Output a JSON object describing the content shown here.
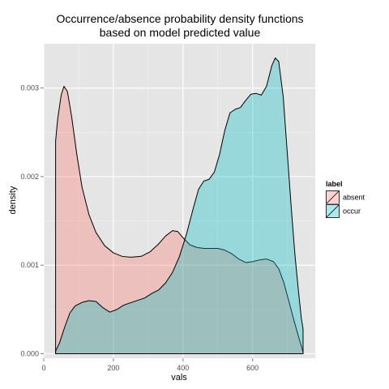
{
  "chart_data": {
    "type": "area",
    "title_lines": [
      "Occurrence/absence probability density functions",
      "based on model predicted value"
    ],
    "xlabel": "vals",
    "ylabel": "density",
    "xlim": [
      0,
      780
    ],
    "ylim": [
      -5e-05,
      0.0035
    ],
    "x_ticks": [
      0,
      200,
      400,
      600
    ],
    "y_ticks": [
      0.0,
      0.001,
      0.002,
      0.003
    ],
    "x_tick_labels": [
      "0",
      "200",
      "400",
      "600"
    ],
    "y_tick_labels": [
      "0.000",
      "0.001",
      "0.002",
      "0.003"
    ],
    "grid": true,
    "legend": {
      "title": "label",
      "position": "right",
      "items": [
        {
          "name": "absent",
          "color": "#F8766D"
        },
        {
          "name": "occur",
          "color": "#00BFC4"
        }
      ]
    },
    "series": [
      {
        "name": "absent",
        "color": "#F8766D",
        "points": [
          [
            34,
            0.0024
          ],
          [
            40,
            0.00265
          ],
          [
            50,
            0.00292
          ],
          [
            58,
            0.00302
          ],
          [
            68,
            0.00296
          ],
          [
            80,
            0.00268
          ],
          [
            95,
            0.00225
          ],
          [
            110,
            0.00188
          ],
          [
            130,
            0.00157
          ],
          [
            150,
            0.00137
          ],
          [
            175,
            0.00122
          ],
          [
            200,
            0.00114
          ],
          [
            225,
            0.0011
          ],
          [
            250,
            0.00109
          ],
          [
            280,
            0.0011
          ],
          [
            305,
            0.00115
          ],
          [
            330,
            0.00124
          ],
          [
            350,
            0.00133
          ],
          [
            370,
            0.00139
          ],
          [
            385,
            0.00138
          ],
          [
            400,
            0.00131
          ],
          [
            420,
            0.00123
          ],
          [
            440,
            0.0012
          ],
          [
            460,
            0.00119
          ],
          [
            480,
            0.00119
          ],
          [
            500,
            0.00119
          ],
          [
            520,
            0.00117
          ],
          [
            540,
            0.00113
          ],
          [
            560,
            0.00107
          ],
          [
            580,
            0.00103
          ],
          [
            600,
            0.00104
          ],
          [
            620,
            0.00106
          ],
          [
            640,
            0.00107
          ],
          [
            660,
            0.00104
          ],
          [
            675,
            0.00096
          ],
          [
            690,
            0.0008
          ],
          [
            705,
            0.00058
          ],
          [
            720,
            0.00036
          ],
          [
            733,
            0.00018
          ],
          [
            745,
            2e-05
          ]
        ]
      },
      {
        "name": "occur",
        "color": "#00BFC4",
        "points": [
          [
            34,
            3e-05
          ],
          [
            45,
            0.00012
          ],
          [
            60,
            0.0003
          ],
          [
            75,
            0.00046
          ],
          [
            90,
            0.00054
          ],
          [
            110,
            0.00058
          ],
          [
            130,
            0.0006
          ],
          [
            150,
            0.00059
          ],
          [
            170,
            0.00052
          ],
          [
            190,
            0.00047
          ],
          [
            210,
            0.0005
          ],
          [
            230,
            0.00055
          ],
          [
            260,
            0.00059
          ],
          [
            290,
            0.00063
          ],
          [
            310,
            0.00068
          ],
          [
            330,
            0.00072
          ],
          [
            350,
            0.0008
          ],
          [
            370,
            0.00092
          ],
          [
            390,
            0.0011
          ],
          [
            410,
            0.00135
          ],
          [
            430,
            0.00165
          ],
          [
            445,
            0.00186
          ],
          [
            460,
            0.00195
          ],
          [
            475,
            0.00197
          ],
          [
            490,
            0.00205
          ],
          [
            505,
            0.00225
          ],
          [
            520,
            0.00252
          ],
          [
            535,
            0.00272
          ],
          [
            550,
            0.00276
          ],
          [
            565,
            0.00278
          ],
          [
            580,
            0.00286
          ],
          [
            595,
            0.00293
          ],
          [
            610,
            0.00294
          ],
          [
            625,
            0.00292
          ],
          [
            640,
            0.00302
          ],
          [
            655,
            0.00325
          ],
          [
            665,
            0.00334
          ],
          [
            675,
            0.0033
          ],
          [
            688,
            0.0029
          ],
          [
            700,
            0.00225
          ],
          [
            712,
            0.0016
          ],
          [
            722,
            0.0011
          ],
          [
            732,
            0.0007
          ],
          [
            740,
            0.0004
          ],
          [
            745,
            0.00028
          ]
        ]
      }
    ]
  }
}
